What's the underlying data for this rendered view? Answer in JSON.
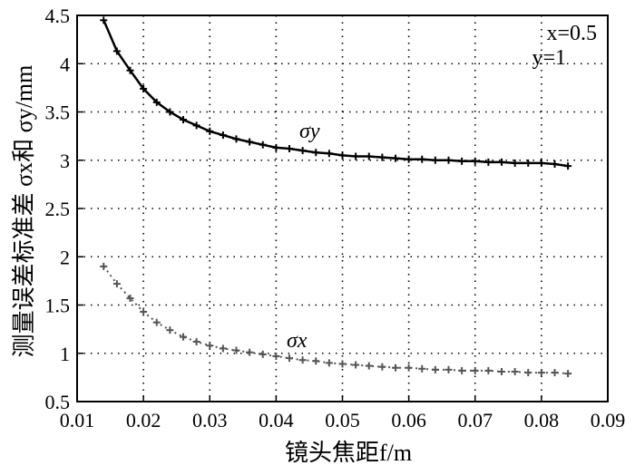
{
  "chart_data": {
    "type": "line",
    "xlabel": "镜头焦距f/m",
    "ylabel": "测量误差标准差 σx和 σy/mm",
    "xlim": [
      0.01,
      0.09
    ],
    "ylim": [
      0.5,
      4.5
    ],
    "x_ticks": [
      "0.01",
      "0.02",
      "0.03",
      "0.04",
      "0.05",
      "0.06",
      "0.07",
      "0.08",
      "0.09"
    ],
    "y_ticks": [
      "0.5",
      "1",
      "1.5",
      "2",
      "2.5",
      "3",
      "3.5",
      "4",
      "4.5"
    ],
    "grid": true,
    "annotations": [
      "x=0.5",
      "y=1"
    ],
    "series": [
      {
        "name": "σy",
        "style": "solid-line-with-plus-markers",
        "color": "#000000",
        "x": [
          0.014,
          0.016,
          0.018,
          0.02,
          0.022,
          0.024,
          0.026,
          0.028,
          0.03,
          0.032,
          0.034,
          0.036,
          0.038,
          0.04,
          0.042,
          0.044,
          0.046,
          0.048,
          0.05,
          0.052,
          0.054,
          0.056,
          0.058,
          0.06,
          0.062,
          0.064,
          0.066,
          0.068,
          0.07,
          0.072,
          0.074,
          0.076,
          0.078,
          0.08,
          0.082,
          0.084
        ],
        "y": [
          4.45,
          4.13,
          3.93,
          3.74,
          3.6,
          3.5,
          3.42,
          3.36,
          3.3,
          3.26,
          3.22,
          3.19,
          3.16,
          3.13,
          3.12,
          3.1,
          3.08,
          3.07,
          3.05,
          3.04,
          3.04,
          3.03,
          3.02,
          3.01,
          3.01,
          3.0,
          3.0,
          2.99,
          2.99,
          2.98,
          2.98,
          2.97,
          2.97,
          2.97,
          2.96,
          2.94
        ]
      },
      {
        "name": "σx",
        "style": "dotted-gray-plus-markers",
        "color": "#555555",
        "x": [
          0.014,
          0.016,
          0.018,
          0.02,
          0.022,
          0.024,
          0.026,
          0.028,
          0.03,
          0.032,
          0.034,
          0.036,
          0.038,
          0.04,
          0.042,
          0.044,
          0.046,
          0.048,
          0.05,
          0.052,
          0.054,
          0.056,
          0.058,
          0.06,
          0.062,
          0.064,
          0.066,
          0.068,
          0.07,
          0.072,
          0.074,
          0.076,
          0.078,
          0.08,
          0.082,
          0.084
        ],
        "y": [
          1.9,
          1.72,
          1.57,
          1.43,
          1.32,
          1.24,
          1.17,
          1.12,
          1.08,
          1.05,
          1.03,
          1.01,
          0.99,
          0.97,
          0.95,
          0.93,
          0.92,
          0.9,
          0.89,
          0.88,
          0.87,
          0.86,
          0.85,
          0.85,
          0.84,
          0.83,
          0.83,
          0.82,
          0.82,
          0.82,
          0.81,
          0.81,
          0.8,
          0.8,
          0.8,
          0.79
        ]
      }
    ]
  }
}
